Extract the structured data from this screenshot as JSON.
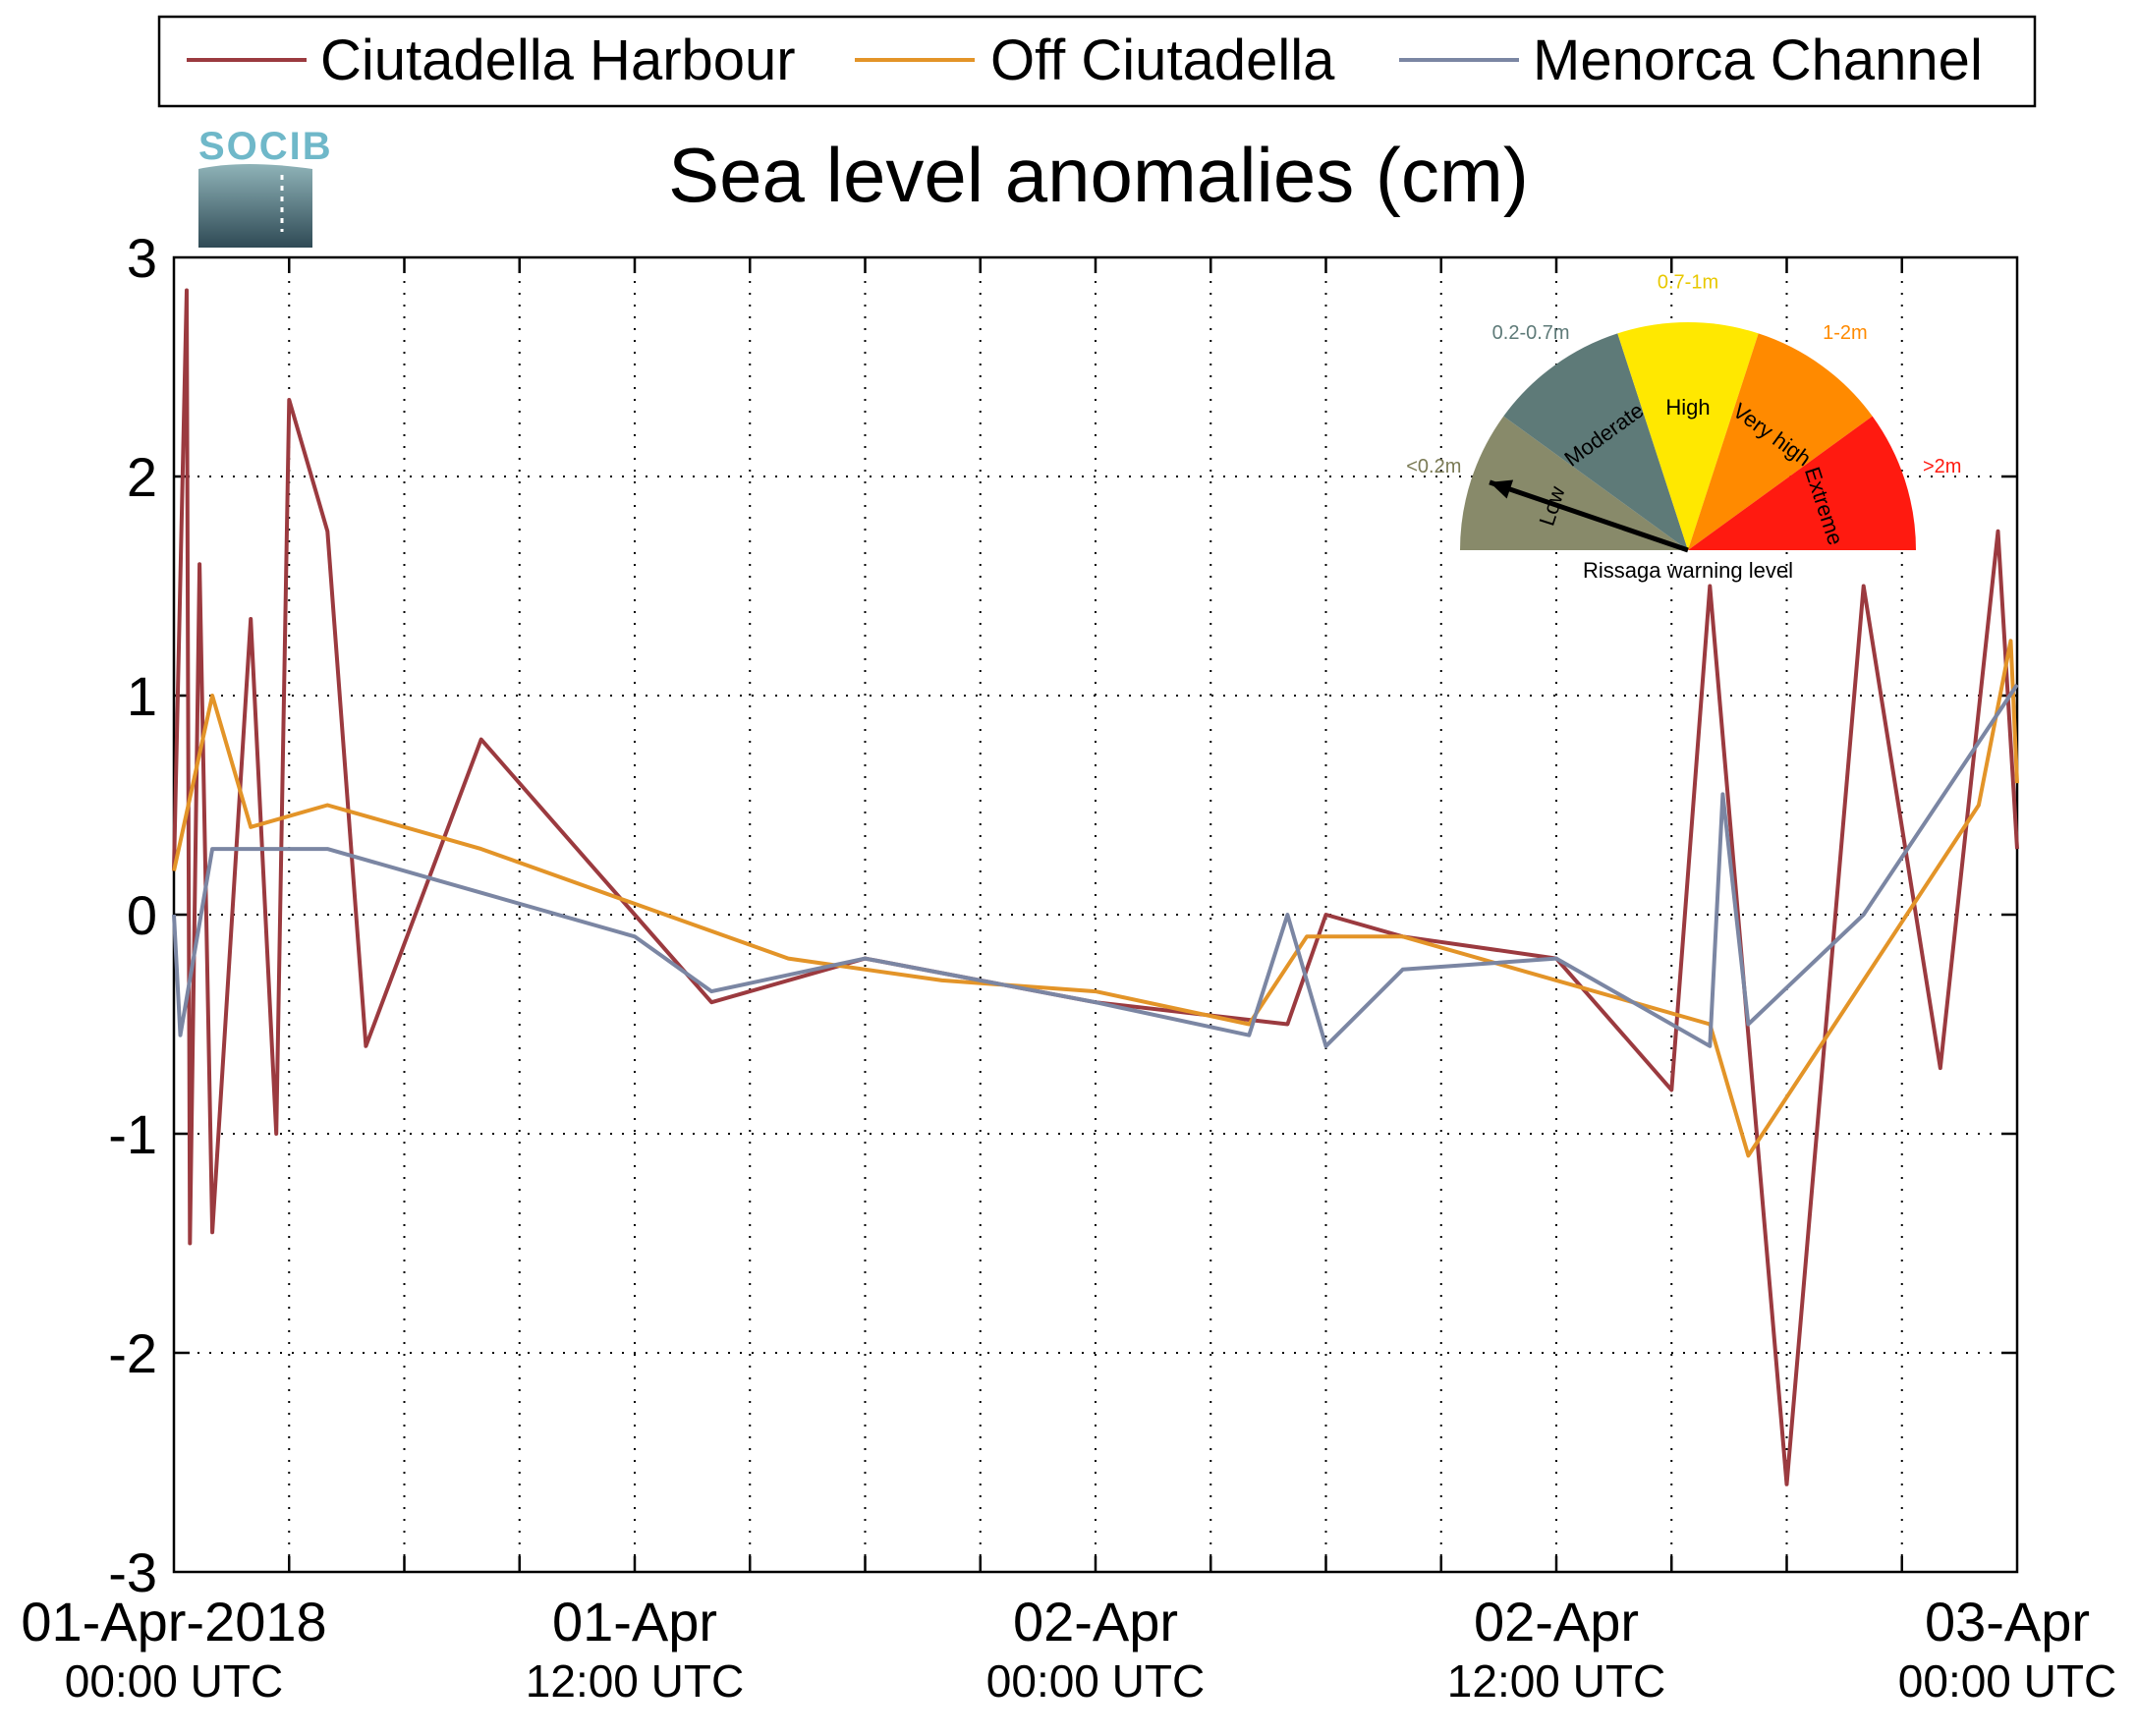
{
  "chart_data": {
    "type": "line",
    "title": "Sea level anomalies (cm)",
    "xlabel": "",
    "ylabel": "",
    "ylim": [
      -3,
      3
    ],
    "yticks": [
      "3",
      "2",
      "1",
      "0",
      "-1",
      "-2",
      "-3"
    ],
    "xlim": [
      "2018-04-01 00:00",
      "2018-04-03 00:00"
    ],
    "x_tick_labels": [
      {
        "time": "2018-04-01 00:00",
        "line1": "01-Apr-2018",
        "line2": "00:00 UTC"
      },
      {
        "time": "2018-04-01 12:00",
        "line1": "01-Apr",
        "line2": "12:00 UTC"
      },
      {
        "time": "2018-04-02 00:00",
        "line1": "02-Apr",
        "line2": "00:00 UTC"
      },
      {
        "time": "2018-04-02 12:00",
        "line1": "02-Apr",
        "line2": "12:00 UTC"
      },
      {
        "time": "2018-04-03 00:00",
        "line1": "03-Apr",
        "line2": "00:00 UTC"
      }
    ],
    "grid": true,
    "legend_position": "top",
    "series": [
      {
        "name": "Ciutadella Harbour",
        "color": "#9b3a3f",
        "points": [
          [
            "2018-04-01 00:00",
            0.2
          ],
          [
            "2018-04-01 00:20",
            2.85
          ],
          [
            "2018-04-01 00:25",
            -1.5
          ],
          [
            "2018-04-01 00:40",
            1.6
          ],
          [
            "2018-04-01 01:00",
            -1.45
          ],
          [
            "2018-04-01 02:00",
            1.35
          ],
          [
            "2018-04-01 02:40",
            -1.0
          ],
          [
            "2018-04-01 03:00",
            2.35
          ],
          [
            "2018-04-01 04:00",
            1.75
          ],
          [
            "2018-04-01 05:00",
            -0.6
          ],
          [
            "2018-04-01 08:00",
            0.8
          ],
          [
            "2018-04-01 10:00",
            0.4
          ],
          [
            "2018-04-01 12:00",
            0.0
          ],
          [
            "2018-04-01 14:00",
            -0.4
          ],
          [
            "2018-04-01 18:00",
            -0.2
          ],
          [
            "2018-04-02 00:00",
            -0.4
          ],
          [
            "2018-04-02 05:00",
            -0.5
          ],
          [
            "2018-04-02 06:00",
            0.0
          ],
          [
            "2018-04-02 08:00",
            -0.1
          ],
          [
            "2018-04-02 12:00",
            -0.2
          ],
          [
            "2018-04-02 15:00",
            -0.8
          ],
          [
            "2018-04-02 16:00",
            1.5
          ],
          [
            "2018-04-02 18:00",
            -2.6
          ],
          [
            "2018-04-02 20:00",
            1.5
          ],
          [
            "2018-04-02 22:00",
            -0.7
          ],
          [
            "2018-04-02 23:30",
            1.75
          ],
          [
            "2018-04-03 00:00",
            0.3
          ]
        ]
      },
      {
        "name": "Off Ciutadella",
        "color": "#e39428",
        "points": [
          [
            "2018-04-01 00:00",
            0.2
          ],
          [
            "2018-04-01 01:00",
            1.0
          ],
          [
            "2018-04-01 02:00",
            0.4
          ],
          [
            "2018-04-01 04:00",
            0.5
          ],
          [
            "2018-04-01 08:00",
            0.3
          ],
          [
            "2018-04-01 12:00",
            0.05
          ],
          [
            "2018-04-01 16:00",
            -0.2
          ],
          [
            "2018-04-01 20:00",
            -0.3
          ],
          [
            "2018-04-02 00:00",
            -0.35
          ],
          [
            "2018-04-02 04:00",
            -0.5
          ],
          [
            "2018-04-02 05:30",
            -0.1
          ],
          [
            "2018-04-02 08:00",
            -0.1
          ],
          [
            "2018-04-02 12:00",
            -0.3
          ],
          [
            "2018-04-02 16:00",
            -0.5
          ],
          [
            "2018-04-02 17:00",
            -1.1
          ],
          [
            "2018-04-02 20:00",
            -0.3
          ],
          [
            "2018-04-02 23:00",
            0.5
          ],
          [
            "2018-04-02 23:50",
            1.25
          ],
          [
            "2018-04-03 00:00",
            0.6
          ]
        ]
      },
      {
        "name": "Menorca Channel",
        "color": "#7b86a3",
        "points": [
          [
            "2018-04-01 00:00",
            0.0
          ],
          [
            "2018-04-01 00:10",
            -0.55
          ],
          [
            "2018-04-01 01:00",
            0.3
          ],
          [
            "2018-04-01 04:00",
            0.3
          ],
          [
            "2018-04-01 08:00",
            0.1
          ],
          [
            "2018-04-01 12:00",
            -0.1
          ],
          [
            "2018-04-01 14:00",
            -0.35
          ],
          [
            "2018-04-01 18:00",
            -0.2
          ],
          [
            "2018-04-02 00:00",
            -0.4
          ],
          [
            "2018-04-02 04:00",
            -0.55
          ],
          [
            "2018-04-02 05:00",
            0.0
          ],
          [
            "2018-04-02 06:00",
            -0.6
          ],
          [
            "2018-04-02 08:00",
            -0.25
          ],
          [
            "2018-04-02 12:00",
            -0.2
          ],
          [
            "2018-04-02 16:00",
            -0.6
          ],
          [
            "2018-04-02 16:20",
            0.55
          ],
          [
            "2018-04-02 17:00",
            -0.5
          ],
          [
            "2018-04-02 20:00",
            0.0
          ],
          [
            "2018-04-03 00:00",
            1.05
          ]
        ]
      }
    ],
    "logo": {
      "text": "SOCIB"
    },
    "gauge": {
      "title": "Rissaga warning level",
      "needle_value": 0.15,
      "segments": [
        {
          "label": "Low",
          "range": "<0.2m",
          "color": "#888a6a",
          "text_color": "#7a7a55"
        },
        {
          "label": "Moderate",
          "range": "0.2-0.7m",
          "color": "#5e7a78",
          "text_color": "#5e7a78"
        },
        {
          "label": "High",
          "range": "0.7-1m",
          "color": "#ffe800",
          "text_color": "#e8c800"
        },
        {
          "label": "Very high",
          "range": "1-2m",
          "color": "#ff8a00",
          "text_color": "#ff8a00"
        },
        {
          "label": "Extreme",
          "range": ">2m",
          "color": "#ff1a10",
          "text_color": "#ff1a10"
        }
      ]
    }
  }
}
